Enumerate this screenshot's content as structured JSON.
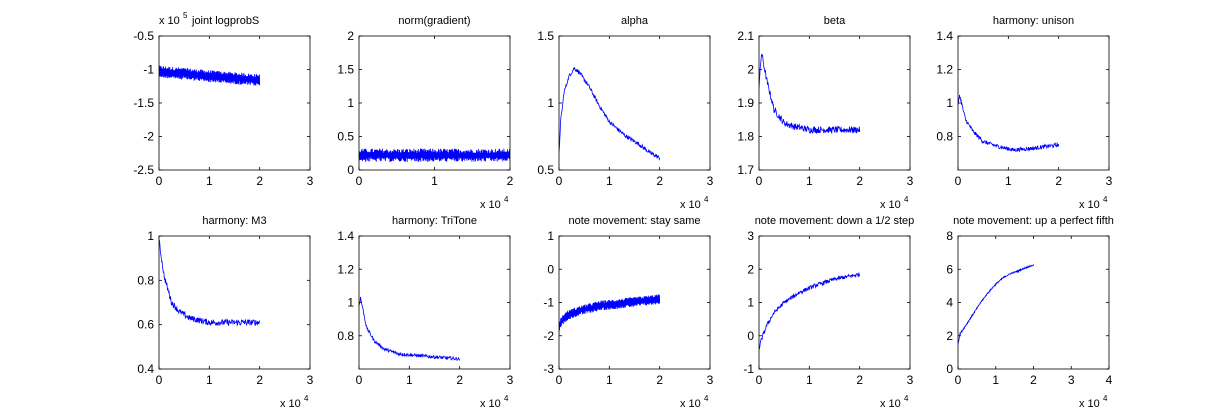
{
  "figure": {
    "background": "#ffffff",
    "line_color": "#0000ff",
    "axis_color": "#000000"
  },
  "chart_data": [
    {
      "type": "line",
      "title": "joint logprobS",
      "xlim": [
        0,
        30000
      ],
      "ylim": [
        -250000,
        -50000
      ],
      "xticks": [
        "0",
        "1",
        "2",
        "3"
      ],
      "yticks": [
        "-2.5",
        "-2",
        "-1.5",
        "-1",
        "-0.5"
      ],
      "x_exponent": "",
      "y_exponent": "5",
      "series": [
        {
          "kind": "band",
          "x_end": 20000,
          "center": [
            -103000,
            -110000,
            -116000
          ],
          "amp": 9000
        }
      ]
    },
    {
      "type": "line",
      "title": "norm(gradient)",
      "xlim": [
        0,
        20000
      ],
      "ylim": [
        0,
        2
      ],
      "xticks": [
        "0",
        "1",
        "2"
      ],
      "yticks": [
        "0",
        "0.5",
        "1",
        "1.5",
        "2"
      ],
      "x_exponent": "4",
      "y_exponent": "",
      "series": [
        {
          "kind": "band",
          "x_end": 20000,
          "center": [
            0.22,
            0.22,
            0.22
          ],
          "amp": 0.1
        }
      ]
    },
    {
      "type": "line",
      "title": "alpha",
      "xlim": [
        0,
        30000
      ],
      "ylim": [
        0.5,
        1.5
      ],
      "xticks": [
        "0",
        "1",
        "2",
        "3"
      ],
      "yticks": [
        "0.5",
        "1",
        "1.5"
      ],
      "x_exponent": "4",
      "y_exponent": "",
      "series": [
        {
          "kind": "curve",
          "x": [
            0,
            300,
            1000,
            2000,
            3000,
            4000,
            6000,
            8000,
            10000,
            13000,
            16000,
            18000,
            20000
          ],
          "y": [
            0.62,
            0.85,
            1.08,
            1.2,
            1.26,
            1.23,
            1.12,
            0.98,
            0.86,
            0.76,
            0.69,
            0.63,
            0.59
          ],
          "noise": 0.015
        }
      ]
    },
    {
      "type": "line",
      "title": "beta",
      "xlim": [
        0,
        30000
      ],
      "ylim": [
        1.7,
        2.1
      ],
      "xticks": [
        "0",
        "1",
        "2",
        "3"
      ],
      "yticks": [
        "1.7",
        "1.8",
        "1.9",
        "2",
        "2.1"
      ],
      "x_exponent": "4",
      "y_exponent": "",
      "series": [
        {
          "kind": "curve",
          "x": [
            0,
            500,
            1500,
            3000,
            5000,
            7000,
            10000,
            15000,
            20000
          ],
          "y": [
            1.95,
            2.05,
            1.97,
            1.88,
            1.84,
            1.83,
            1.82,
            1.82,
            1.82
          ],
          "noise": 0.01
        }
      ]
    },
    {
      "type": "line",
      "title": "harmony: unison",
      "xlim": [
        0,
        30000
      ],
      "ylim": [
        0.6,
        1.4
      ],
      "xticks": [
        "0",
        "1",
        "2",
        "3"
      ],
      "yticks": [
        "0.8",
        "1",
        "1.2",
        "1.4"
      ],
      "x_exponent": "4",
      "y_exponent": "",
      "series": [
        {
          "kind": "curve",
          "x": [
            0,
            300,
            1500,
            3000,
            5000,
            8000,
            11000,
            15000,
            20000
          ],
          "y": [
            0.98,
            1.05,
            0.9,
            0.83,
            0.77,
            0.74,
            0.72,
            0.73,
            0.75
          ],
          "noise": 0.012
        }
      ]
    },
    {
      "type": "line",
      "title": "harmony: M3",
      "xlim": [
        0,
        30000
      ],
      "ylim": [
        0.4,
        1
      ],
      "xticks": [
        "0",
        "1",
        "2",
        "3"
      ],
      "yticks": [
        "0.4",
        "0.6",
        "0.8",
        "1"
      ],
      "x_exponent": "4",
      "y_exponent": "",
      "series": [
        {
          "kind": "curve",
          "x": [
            0,
            300,
            1000,
            2500,
            4000,
            6000,
            10000,
            15000,
            20000
          ],
          "y": [
            0.98,
            0.93,
            0.82,
            0.7,
            0.66,
            0.63,
            0.61,
            0.61,
            0.61
          ],
          "noise": 0.014
        }
      ]
    },
    {
      "type": "line",
      "title": "harmony: TriTone",
      "xlim": [
        0,
        30000
      ],
      "ylim": [
        0.6,
        1.4
      ],
      "xticks": [
        "0",
        "1",
        "2",
        "3"
      ],
      "yticks": [
        "0.8",
        "1",
        "1.2",
        "1.4"
      ],
      "x_exponent": "4",
      "y_exponent": "",
      "series": [
        {
          "kind": "curve",
          "x": [
            0,
            300,
            1500,
            3000,
            5000,
            8000,
            12000,
            16000,
            20000
          ],
          "y": [
            0.98,
            1.03,
            0.85,
            0.77,
            0.72,
            0.69,
            0.68,
            0.67,
            0.66
          ],
          "noise": 0.01
        }
      ]
    },
    {
      "type": "line",
      "title": "note movement: stay same",
      "xlim": [
        0,
        30000
      ],
      "ylim": [
        -3,
        1
      ],
      "xticks": [
        "0",
        "1",
        "2",
        "3"
      ],
      "yticks": [
        "-3",
        "-2",
        "-1",
        "0",
        "1"
      ],
      "x_exponent": "4",
      "y_exponent": "",
      "series": [
        {
          "kind": "band",
          "x_end": 20000,
          "center_x": [
            0,
            300,
            1500,
            4000,
            8000,
            14000,
            20000
          ],
          "center": [
            -1.8,
            -1.6,
            -1.4,
            -1.25,
            -1.1,
            -1.0,
            -0.9
          ],
          "amp": 0.15
        }
      ]
    },
    {
      "type": "line",
      "title": "note movement: down a 1/2 step",
      "xlim": [
        0,
        30000
      ],
      "ylim": [
        -1,
        3
      ],
      "xticks": [
        "0",
        "1",
        "2",
        "3"
      ],
      "yticks": [
        "-1",
        "0",
        "1",
        "2",
        "3"
      ],
      "x_exponent": "4",
      "y_exponent": "",
      "series": [
        {
          "kind": "curve",
          "x": [
            0,
            500,
            1500,
            3000,
            5000,
            8000,
            11000,
            15000,
            20000
          ],
          "y": [
            -0.4,
            -0.1,
            0.3,
            0.7,
            1.0,
            1.3,
            1.5,
            1.7,
            1.85
          ],
          "noise": 0.06
        }
      ]
    },
    {
      "type": "line",
      "title": "note movement: up a perfect fifth",
      "xlim": [
        0,
        40000
      ],
      "ylim": [
        0,
        8
      ],
      "xticks": [
        "0",
        "1",
        "2",
        "3",
        "4"
      ],
      "yticks": [
        "0",
        "2",
        "4",
        "6",
        "8"
      ],
      "x_exponent": "4",
      "y_exponent": "",
      "series": [
        {
          "kind": "curve",
          "x": [
            0,
            500,
            2000,
            4000,
            6000,
            8000,
            10000,
            12000,
            14000,
            16000,
            18000,
            20000
          ],
          "y": [
            1.5,
            2.1,
            2.6,
            3.3,
            4.0,
            4.6,
            5.1,
            5.5,
            5.75,
            5.9,
            6.1,
            6.25
          ],
          "noise": 0.04
        }
      ]
    }
  ]
}
